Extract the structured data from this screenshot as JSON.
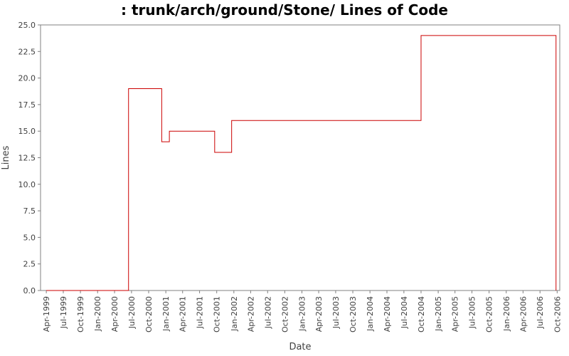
{
  "chart_data": {
    "type": "line",
    "title": ": trunk/arch/ground/Stone/ Lines of Code",
    "xlabel": "Date",
    "ylabel": "Lines",
    "ylim": [
      0,
      25
    ],
    "xlim": [
      "1999-03-01",
      "2006-10-15"
    ],
    "y_ticks": [
      "0.0",
      "2.5",
      "5.0",
      "7.5",
      "10.0",
      "12.5",
      "15.0",
      "17.5",
      "20.0",
      "22.5",
      "25.0"
    ],
    "x_ticks": [
      "Apr-1999",
      "Jul-1999",
      "Oct-1999",
      "Jan-2000",
      "Apr-2000",
      "Jul-2000",
      "Oct-2000",
      "Jan-2001",
      "Apr-2001",
      "Jul-2001",
      "Oct-2001",
      "Jan-2002",
      "Apr-2002",
      "Jul-2002",
      "Oct-2002",
      "Jan-2003",
      "Apr-2003",
      "Jul-2003",
      "Oct-2003",
      "Jan-2004",
      "Apr-2004",
      "Jul-2004",
      "Oct-2004",
      "Jan-2005",
      "Apr-2005",
      "Jul-2005",
      "Oct-2005",
      "Jan-2006",
      "Apr-2006",
      "Jul-2006",
      "Oct-2006"
    ],
    "step": true,
    "grid": false,
    "series": [
      {
        "x": [
          "1999-04-01",
          "2000-06-15",
          "2000-12-10",
          "2001-01-20",
          "2001-09-20",
          "2001-12-20",
          "2004-10-01",
          "2006-09-25"
        ],
        "values": [
          0,
          19,
          14,
          15,
          13,
          16,
          24,
          0
        ]
      }
    ],
    "colors": {
      "line": "#cc0000",
      "axis": "#808080",
      "text": "#404040"
    }
  }
}
